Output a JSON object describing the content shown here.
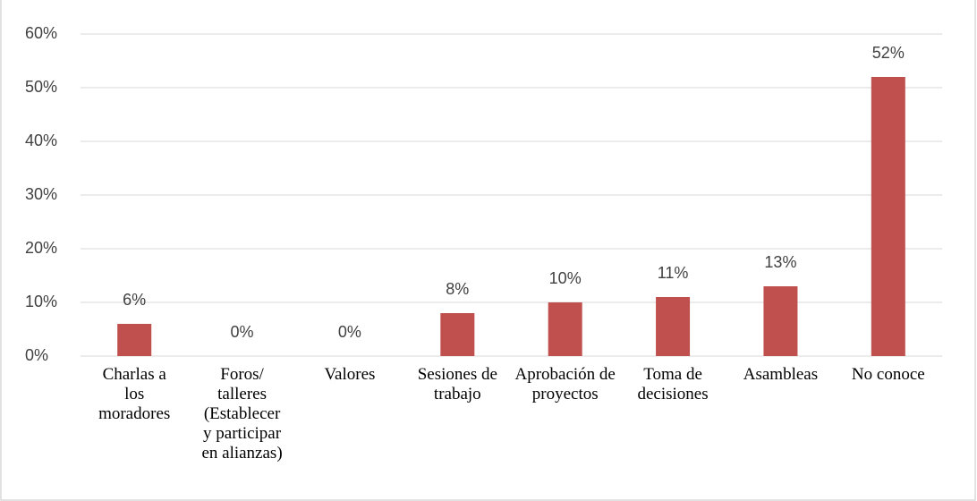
{
  "chart_data": {
    "type": "bar",
    "categories": [
      "Charlas a los moradores",
      "Foros/ talleres (Establecer y participar en alianzas)",
      "Valores",
      "Sesiones de trabajo",
      "Aprobación de proyectos",
      "Toma de decisiones",
      "Asambleas",
      "No conoce"
    ],
    "values": [
      6,
      0,
      0,
      8,
      10,
      11,
      13,
      52
    ],
    "value_labels": [
      "6%",
      "0%",
      "0%",
      "8%",
      "10%",
      "11%",
      "13%",
      "52%"
    ],
    "color": "#c0504d",
    "ylim": [
      0,
      60
    ],
    "yticks": [
      {
        "value": 0,
        "label": "0%"
      },
      {
        "value": 10,
        "label": "10%"
      },
      {
        "value": 20,
        "label": "20%"
      },
      {
        "value": 30,
        "label": "30%"
      },
      {
        "value": 40,
        "label": "40%"
      },
      {
        "value": 50,
        "label": "50%"
      },
      {
        "value": 60,
        "label": "60%"
      }
    ],
    "grid": true
  }
}
